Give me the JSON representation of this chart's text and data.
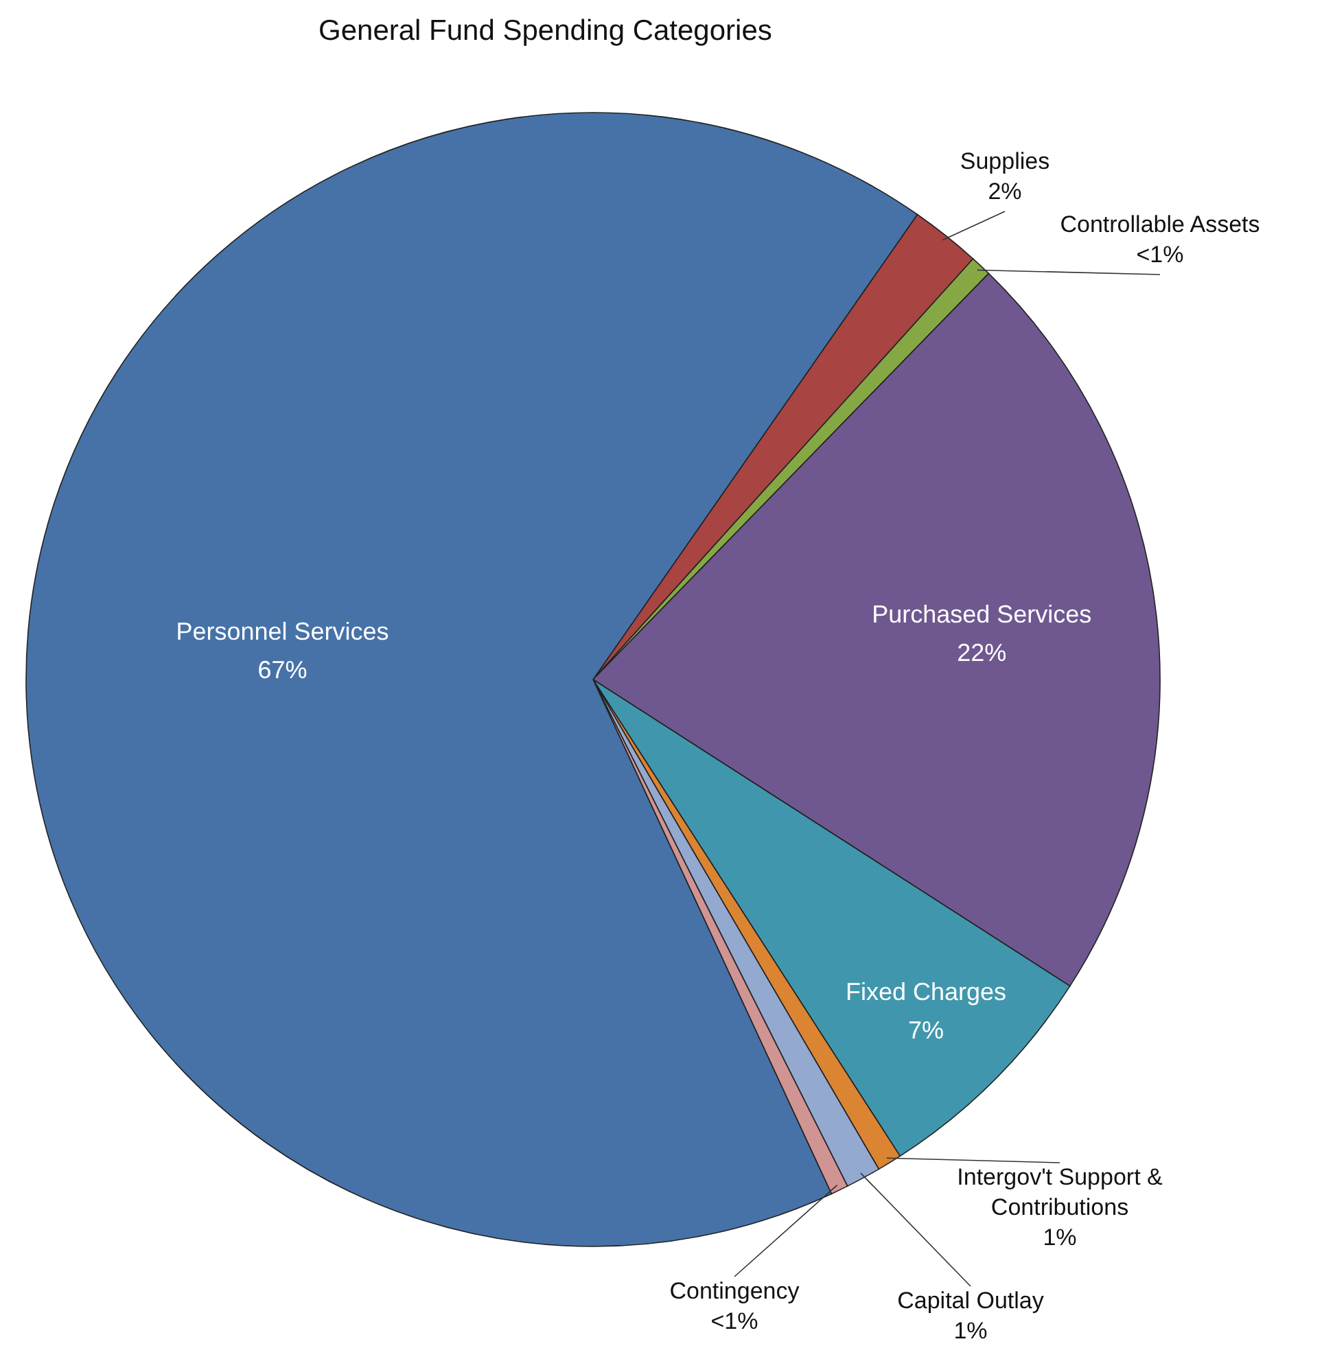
{
  "chart_data": {
    "type": "pie",
    "title": "General Fund Spending Categories",
    "categories": [
      "Supplies",
      "Controllable Assets",
      "Purchased Services",
      "Fixed Charges",
      "Intergov't Support & Contributions",
      "Capital Outlay",
      "Contingency",
      "Personnel Services"
    ],
    "values": [
      2.0,
      0.6,
      21.8,
      6.8,
      0.7,
      1.0,
      0.5,
      66.6
    ],
    "value_labels": [
      "2%",
      "<1%",
      "22%",
      "7%",
      "1%",
      "1%",
      "<1%",
      "67%"
    ],
    "colors": [
      "#a84442",
      "#86a844",
      "#6f5890",
      "#4097ad",
      "#db8432",
      "#93a9d0",
      "#d09492",
      "#4672a8"
    ]
  }
}
